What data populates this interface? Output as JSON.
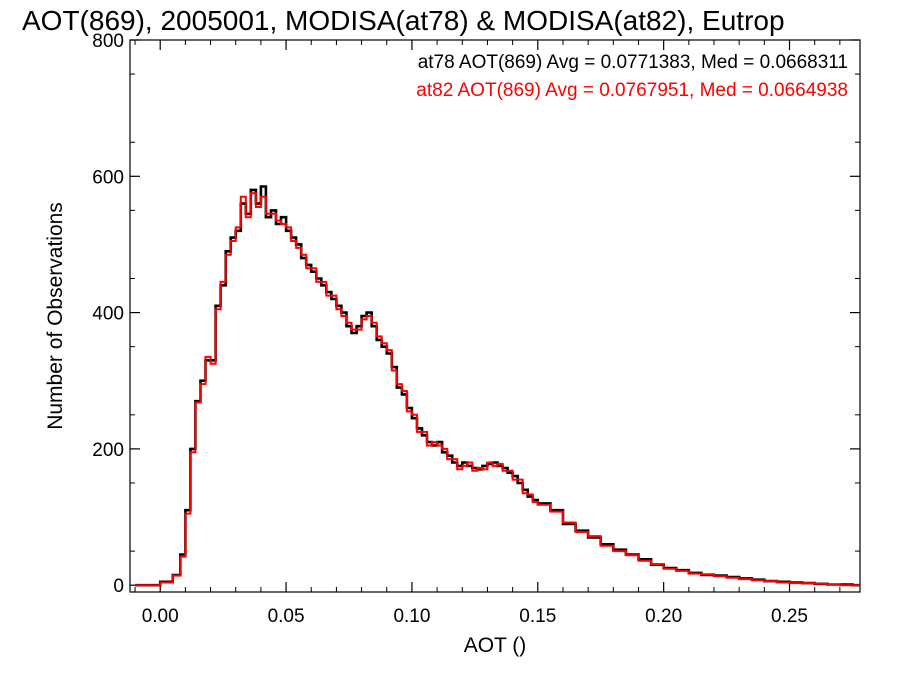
{
  "chart_data": {
    "type": "histogram",
    "title": "AOT(869), 2005001, MODISA(at78) & MODISA(at82), Eutrop",
    "xlabel": "AOT ()",
    "ylabel": "Number of Observations",
    "xlim": [
      -0.012,
      0.278
    ],
    "ylim": [
      -10,
      800
    ],
    "x_ticks": [
      0.0,
      0.05,
      0.1,
      0.15,
      0.2,
      0.25
    ],
    "x_tick_labels": [
      "0.00",
      "0.05",
      "0.10",
      "0.15",
      "0.20",
      "0.25"
    ],
    "y_ticks": [
      0,
      200,
      400,
      600,
      800
    ],
    "y_tick_labels": [
      "0",
      "200",
      "400",
      "600",
      "800"
    ],
    "grid": false,
    "annotations": [
      "at78 AOT(869) Avg = 0.0771383, Med = 0.0668311",
      "at82 AOT(869) Avg = 0.0767951, Med = 0.0664938"
    ],
    "series": [
      {
        "color": "#000000",
        "x": [
          -0.01,
          -0.005,
          0.0,
          0.005,
          0.008,
          0.01,
          0.012,
          0.014,
          0.016,
          0.018,
          0.02,
          0.022,
          0.024,
          0.026,
          0.028,
          0.03,
          0.032,
          0.034,
          0.036,
          0.038,
          0.04,
          0.042,
          0.044,
          0.046,
          0.048,
          0.05,
          0.052,
          0.054,
          0.056,
          0.058,
          0.06,
          0.062,
          0.064,
          0.066,
          0.068,
          0.07,
          0.072,
          0.074,
          0.076,
          0.078,
          0.08,
          0.082,
          0.084,
          0.086,
          0.088,
          0.09,
          0.092,
          0.094,
          0.096,
          0.098,
          0.1,
          0.102,
          0.104,
          0.106,
          0.108,
          0.11,
          0.112,
          0.114,
          0.116,
          0.118,
          0.12,
          0.122,
          0.124,
          0.126,
          0.128,
          0.13,
          0.132,
          0.134,
          0.136,
          0.138,
          0.14,
          0.142,
          0.144,
          0.146,
          0.148,
          0.15,
          0.155,
          0.16,
          0.165,
          0.17,
          0.175,
          0.18,
          0.185,
          0.19,
          0.195,
          0.2,
          0.205,
          0.21,
          0.215,
          0.22,
          0.225,
          0.23,
          0.235,
          0.24,
          0.245,
          0.25,
          0.255,
          0.26,
          0.265,
          0.27,
          0.275
        ],
        "y": [
          0,
          0,
          5,
          15,
          45,
          110,
          200,
          270,
          300,
          330,
          330,
          410,
          440,
          490,
          510,
          520,
          560,
          545,
          580,
          560,
          585,
          540,
          550,
          530,
          540,
          520,
          510,
          500,
          480,
          470,
          460,
          450,
          440,
          430,
          420,
          410,
          400,
          380,
          370,
          380,
          395,
          400,
          380,
          360,
          350,
          340,
          320,
          290,
          280,
          260,
          245,
          230,
          220,
          210,
          205,
          210,
          195,
          190,
          180,
          175,
          180,
          175,
          172,
          170,
          175,
          178,
          180,
          175,
          172,
          165,
          160,
          150,
          140,
          130,
          125,
          120,
          110,
          90,
          80,
          70,
          60,
          52,
          45,
          38,
          30,
          25,
          22,
          18,
          15,
          14,
          12,
          10,
          8,
          6,
          5,
          4,
          3,
          2,
          1,
          1,
          0
        ]
      },
      {
        "color": "#ff0000",
        "x": [
          -0.01,
          -0.005,
          0.0,
          0.005,
          0.008,
          0.01,
          0.012,
          0.014,
          0.016,
          0.018,
          0.02,
          0.022,
          0.024,
          0.026,
          0.028,
          0.03,
          0.032,
          0.034,
          0.036,
          0.038,
          0.04,
          0.042,
          0.044,
          0.046,
          0.048,
          0.05,
          0.052,
          0.054,
          0.056,
          0.058,
          0.06,
          0.062,
          0.064,
          0.066,
          0.068,
          0.07,
          0.072,
          0.074,
          0.076,
          0.078,
          0.08,
          0.082,
          0.084,
          0.086,
          0.088,
          0.09,
          0.092,
          0.094,
          0.096,
          0.098,
          0.1,
          0.102,
          0.104,
          0.106,
          0.108,
          0.11,
          0.112,
          0.114,
          0.116,
          0.118,
          0.12,
          0.122,
          0.124,
          0.126,
          0.128,
          0.13,
          0.132,
          0.134,
          0.136,
          0.138,
          0.14,
          0.142,
          0.144,
          0.146,
          0.148,
          0.15,
          0.155,
          0.16,
          0.165,
          0.17,
          0.175,
          0.18,
          0.185,
          0.19,
          0.195,
          0.2,
          0.205,
          0.21,
          0.215,
          0.22,
          0.225,
          0.23,
          0.235,
          0.24,
          0.245,
          0.25,
          0.255,
          0.26,
          0.265,
          0.27,
          0.275
        ],
        "y": [
          0,
          0,
          4,
          14,
          42,
          105,
          195,
          268,
          295,
          335,
          325,
          405,
          445,
          485,
          505,
          525,
          570,
          540,
          575,
          555,
          570,
          545,
          545,
          535,
          530,
          525,
          505,
          495,
          485,
          465,
          465,
          445,
          445,
          425,
          425,
          405,
          395,
          385,
          375,
          375,
          390,
          395,
          385,
          365,
          355,
          345,
          315,
          295,
          285,
          255,
          250,
          225,
          225,
          205,
          210,
          205,
          200,
          185,
          185,
          170,
          175,
          180,
          168,
          172,
          170,
          180,
          175,
          178,
          168,
          168,
          155,
          155,
          135,
          133,
          122,
          118,
          108,
          92,
          78,
          72,
          58,
          50,
          44,
          36,
          31,
          24,
          21,
          17,
          16,
          13,
          11,
          9,
          7,
          6,
          4,
          3,
          3,
          2,
          1,
          0,
          0
        ]
      }
    ]
  }
}
